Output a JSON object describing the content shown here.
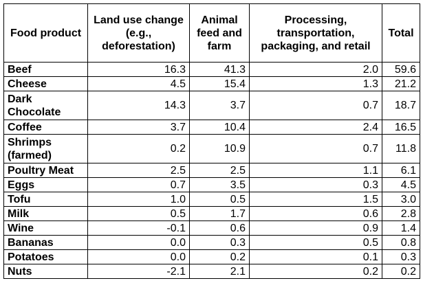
{
  "table": {
    "headers": {
      "food_product": "Food product",
      "land_use": "Land use change (e.g., deforestation)",
      "animal_feed": "Animal feed and farm",
      "processing": "Processing, transportation, packaging, and retail",
      "total": "Total"
    },
    "rows": [
      {
        "food": "Beef",
        "land_use": "16.3",
        "animal_feed": "41.3",
        "processing": "2.0",
        "total": "59.6"
      },
      {
        "food": "Cheese",
        "land_use": "4.5",
        "animal_feed": "15.4",
        "processing": "1.3",
        "total": "21.2"
      },
      {
        "food": "Dark Chocolate",
        "land_use": "14.3",
        "animal_feed": "3.7",
        "processing": "0.7",
        "total": "18.7"
      },
      {
        "food": "Coffee",
        "land_use": "3.7",
        "animal_feed": "10.4",
        "processing": "2.4",
        "total": "16.5"
      },
      {
        "food": "Shrimps (farmed)",
        "land_use": "0.2",
        "animal_feed": "10.9",
        "processing": "0.7",
        "total": "11.8"
      },
      {
        "food": "Poultry Meat",
        "land_use": "2.5",
        "animal_feed": "2.5",
        "processing": "1.1",
        "total": "6.1"
      },
      {
        "food": "Eggs",
        "land_use": "0.7",
        "animal_feed": "3.5",
        "processing": "0.3",
        "total": "4.5"
      },
      {
        "food": "Tofu",
        "land_use": "1.0",
        "animal_feed": "0.5",
        "processing": "1.5",
        "total": "3.0"
      },
      {
        "food": "Milk",
        "land_use": "0.5",
        "animal_feed": "1.7",
        "processing": "0.6",
        "total": "2.8"
      },
      {
        "food": "Wine",
        "land_use": "-0.1",
        "animal_feed": "0.6",
        "processing": "0.9",
        "total": "1.4"
      },
      {
        "food": "Bananas",
        "land_use": "0.0",
        "animal_feed": "0.3",
        "processing": "0.5",
        "total": "0.8"
      },
      {
        "food": "Potatoes",
        "land_use": "0.0",
        "animal_feed": "0.2",
        "processing": "0.1",
        "total": "0.3"
      },
      {
        "food": "Nuts",
        "land_use": "-2.1",
        "animal_feed": "2.1",
        "processing": "0.2",
        "total": "0.2"
      }
    ]
  }
}
